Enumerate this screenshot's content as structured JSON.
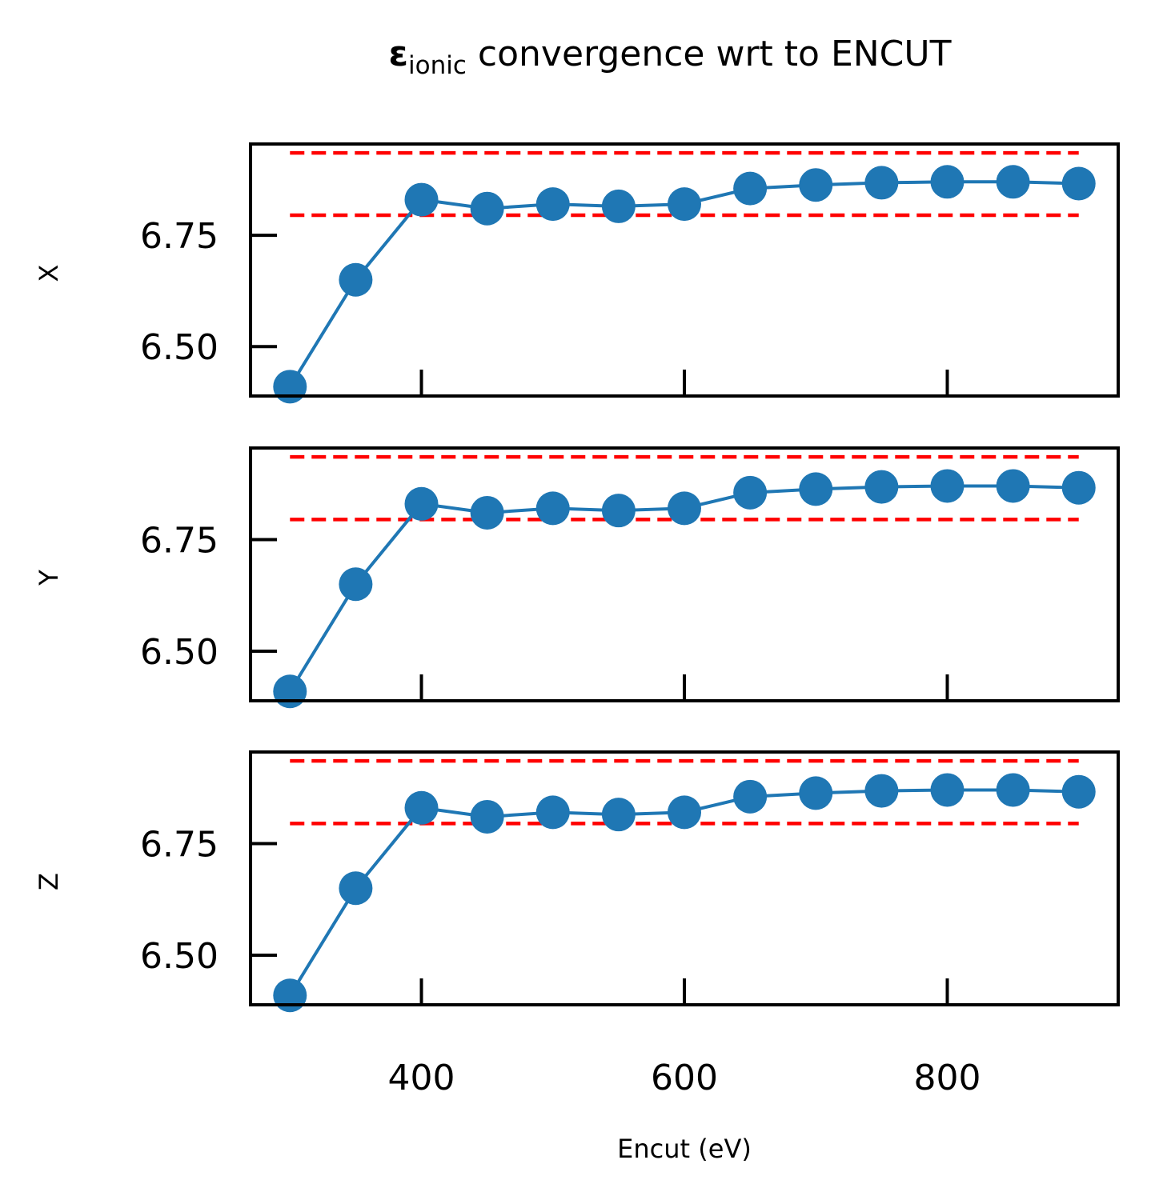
{
  "title": {
    "symbol": "ε",
    "subscript": "ionic",
    "rest": " convergence wrt to ENCUT"
  },
  "colors": {
    "series": "#1f77b4",
    "bounds": "#ff0000",
    "axes": "#000000"
  },
  "chart_data": [
    {
      "type": "line",
      "ylabel": "X",
      "xlabel": "",
      "x": [
        300,
        350,
        400,
        450,
        500,
        550,
        600,
        650,
        700,
        750,
        800,
        850,
        900
      ],
      "series": [
        {
          "values": [
            6.41,
            6.65,
            6.83,
            6.81,
            6.82,
            6.815,
            6.82,
            6.855,
            6.863,
            6.868,
            6.87,
            6.87,
            6.866
          ]
        }
      ],
      "reference_lines": [
        {
          "y": 6.935,
          "x_range": [
            300,
            900
          ],
          "style": "dashed"
        },
        {
          "y": 6.795,
          "x_range": [
            300,
            900
          ],
          "style": "dashed"
        }
      ],
      "xlim": [
        270,
        930
      ],
      "ylim": [
        6.389,
        6.955
      ],
      "yticks": [
        "6.50",
        "6.75"
      ],
      "xticks": [
        "400",
        "600",
        "800"
      ],
      "show_xtick_labels": false,
      "grid": false
    },
    {
      "type": "line",
      "ylabel": "Y",
      "xlabel": "",
      "x": [
        300,
        350,
        400,
        450,
        500,
        550,
        600,
        650,
        700,
        750,
        800,
        850,
        900
      ],
      "series": [
        {
          "values": [
            6.41,
            6.65,
            6.83,
            6.81,
            6.82,
            6.815,
            6.82,
            6.855,
            6.863,
            6.868,
            6.87,
            6.87,
            6.866
          ]
        }
      ],
      "reference_lines": [
        {
          "y": 6.935,
          "x_range": [
            300,
            900
          ],
          "style": "dashed"
        },
        {
          "y": 6.795,
          "x_range": [
            300,
            900
          ],
          "style": "dashed"
        }
      ],
      "xlim": [
        270,
        930
      ],
      "ylim": [
        6.389,
        6.955
      ],
      "yticks": [
        "6.50",
        "6.75"
      ],
      "xticks": [
        "400",
        "600",
        "800"
      ],
      "show_xtick_labels": false,
      "grid": false
    },
    {
      "type": "line",
      "ylabel": "Z",
      "xlabel": "Encut (eV)",
      "x": [
        300,
        350,
        400,
        450,
        500,
        550,
        600,
        650,
        700,
        750,
        800,
        850,
        900
      ],
      "series": [
        {
          "values": [
            6.41,
            6.65,
            6.83,
            6.81,
            6.82,
            6.815,
            6.82,
            6.855,
            6.863,
            6.868,
            6.87,
            6.87,
            6.866
          ]
        }
      ],
      "reference_lines": [
        {
          "y": 6.935,
          "x_range": [
            300,
            900
          ],
          "style": "dashed"
        },
        {
          "y": 6.795,
          "x_range": [
            300,
            900
          ],
          "style": "dashed"
        }
      ],
      "xlim": [
        270,
        930
      ],
      "ylim": [
        6.389,
        6.955
      ],
      "yticks": [
        "6.50",
        "6.75"
      ],
      "xticks": [
        "400",
        "600",
        "800"
      ],
      "show_xtick_labels": true,
      "grid": false
    }
  ]
}
